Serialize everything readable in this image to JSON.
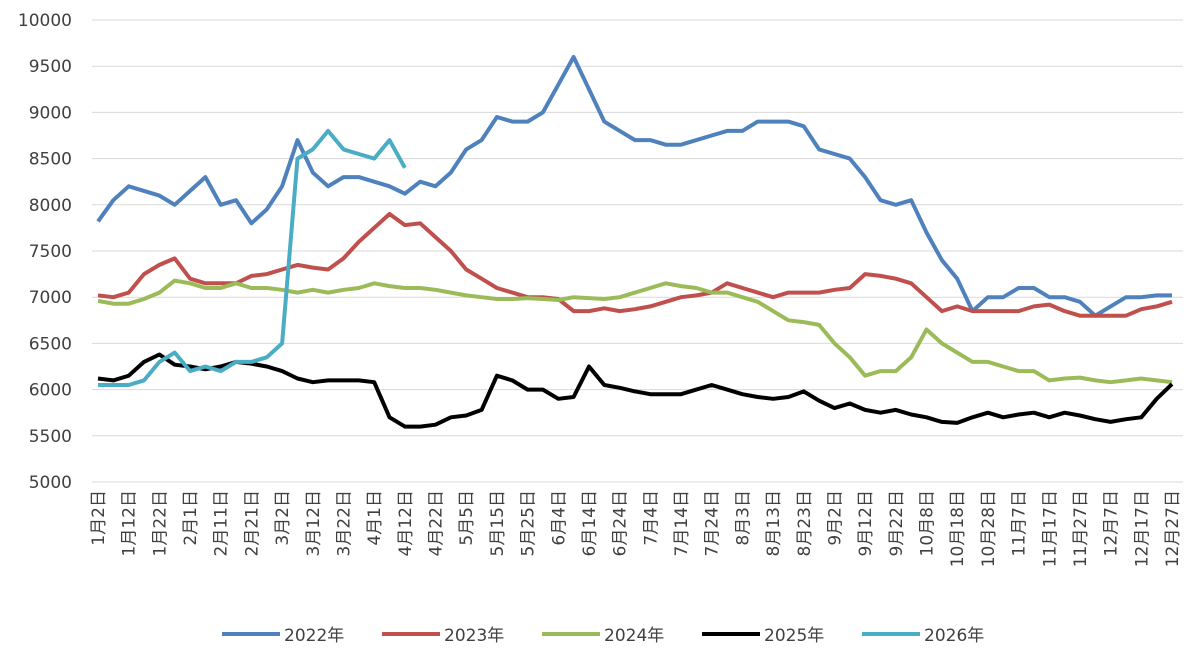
{
  "chart_data": {
    "type": "line",
    "categories": [
      "1月2日",
      null,
      "1月12日",
      null,
      "1月22日",
      null,
      "2月1日",
      null,
      "2月11日",
      null,
      "2月21日",
      null,
      "3月2日",
      null,
      "3月12日",
      null,
      "3月22日",
      null,
      "4月1日",
      null,
      "4月12日",
      null,
      "4月22日",
      null,
      "5月5日",
      null,
      "5月15日",
      null,
      "5月25日",
      null,
      "6月4日",
      null,
      "6月14日",
      null,
      "6月24日",
      null,
      "7月4日",
      null,
      "7月14日",
      null,
      "7月24日",
      null,
      "8月3日",
      null,
      "8月13日",
      null,
      "8月23日",
      null,
      "9月2日",
      null,
      "9月12日",
      null,
      "9月22日",
      null,
      "10月8日",
      null,
      "10月18日",
      null,
      "10月28日",
      null,
      "11月7日",
      null,
      "11月17日",
      null,
      "11月27日",
      null,
      "12月7日",
      null,
      "12月17日",
      null,
      "12月27日"
    ],
    "series": [
      {
        "name": "2022年",
        "color": "#4f81bd",
        "values": [
          7820,
          8050,
          8200,
          8150,
          8100,
          8000,
          8150,
          8300,
          8000,
          8050,
          7800,
          7950,
          8200,
          8700,
          8350,
          8200,
          8300,
          8300,
          8250,
          8200,
          8120,
          8250,
          8200,
          8350,
          8600,
          8700,
          8950,
          8900,
          8900,
          9000,
          9300,
          9600,
          9250,
          8900,
          8800,
          8700,
          8700,
          8650,
          8650,
          8700,
          8750,
          8800,
          8800,
          8900,
          8900,
          8900,
          8850,
          8600,
          8550,
          8500,
          8300,
          8050,
          8000,
          8050,
          7700,
          7400,
          7200,
          6850,
          7000,
          7000,
          7100,
          7100,
          7000,
          7000,
          6950,
          6800,
          6900,
          7000,
          7000,
          7020,
          7020
        ]
      },
      {
        "name": "2023年",
        "color": "#c0504d",
        "values": [
          7020,
          7000,
          7050,
          7250,
          7350,
          7420,
          7200,
          7150,
          7150,
          7150,
          7230,
          7250,
          7300,
          7350,
          7320,
          7300,
          7420,
          7600,
          7750,
          7900,
          7780,
          7800,
          7650,
          7500,
          7300,
          7200,
          7100,
          7050,
          7000,
          7000,
          6980,
          6850,
          6850,
          6880,
          6850,
          6870,
          6900,
          6950,
          7000,
          7020,
          7050,
          7150,
          7100,
          7050,
          7000,
          7050,
          7050,
          7050,
          7080,
          7100,
          7250,
          7230,
          7200,
          7150,
          7000,
          6850,
          6900,
          6850,
          6850,
          6850,
          6850,
          6900,
          6920,
          6850,
          6800,
          6800,
          6800,
          6800,
          6870,
          6900,
          6950
        ]
      },
      {
        "name": "2024年",
        "color": "#9bbb59",
        "values": [
          6960,
          6930,
          6930,
          6980,
          7050,
          7180,
          7150,
          7100,
          7100,
          7150,
          7100,
          7100,
          7080,
          7050,
          7080,
          7050,
          7080,
          7100,
          7150,
          7120,
          7100,
          7100,
          7080,
          7050,
          7020,
          7000,
          6980,
          6980,
          6990,
          6980,
          6970,
          7000,
          6990,
          6980,
          7000,
          7050,
          7100,
          7150,
          7120,
          7100,
          7050,
          7050,
          7000,
          6950,
          6850,
          6750,
          6730,
          6700,
          6500,
          6350,
          6150,
          6200,
          6200,
          6350,
          6650,
          6500,
          6400,
          6300,
          6300,
          6250,
          6200,
          6200,
          6100,
          6120,
          6130,
          6100,
          6080,
          6100,
          6120,
          6100,
          6080
        ]
      },
      {
        "name": "2025年",
        "color": "#000000",
        "values": [
          6120,
          6100,
          6150,
          6300,
          6380,
          6270,
          6250,
          6220,
          6250,
          6300,
          6280,
          6250,
          6200,
          6120,
          6080,
          6100,
          6100,
          6100,
          6080,
          5700,
          5600,
          5600,
          5620,
          5700,
          5720,
          5780,
          6150,
          6100,
          6000,
          6000,
          5900,
          5920,
          6250,
          6050,
          6020,
          5980,
          5950,
          5950,
          5950,
          6000,
          6050,
          6000,
          5950,
          5920,
          5900,
          5920,
          5980,
          5880,
          5800,
          5850,
          5780,
          5750,
          5780,
          5730,
          5700,
          5650,
          5640,
          5700,
          5750,
          5700,
          5730,
          5750,
          5700,
          5750,
          5720,
          5680,
          5650,
          5680,
          5700,
          5900,
          6060
        ]
      },
      {
        "name": "2026年",
        "color": "#4bacc6",
        "values": [
          6050,
          6050,
          6050,
          6100,
          6300,
          6400,
          6200,
          6250,
          6200,
          6300,
          6300,
          6350,
          6500,
          8500,
          8600,
          8800,
          8600,
          8550,
          8500,
          8700,
          8400,
          null,
          null,
          null,
          null,
          null,
          null,
          null,
          null,
          null,
          null,
          null,
          null,
          null,
          null,
          null,
          null,
          null,
          null,
          null,
          null,
          null,
          null,
          null,
          null,
          null,
          null,
          null,
          null,
          null,
          null,
          null,
          null,
          null,
          null,
          null,
          null,
          null,
          null,
          null,
          null,
          null,
          null,
          null,
          null,
          null,
          null,
          null,
          null,
          null,
          null
        ]
      }
    ],
    "ylim": [
      5000,
      10000
    ],
    "yticks": [
      5000,
      5500,
      6000,
      6500,
      7000,
      7500,
      8000,
      8500,
      9000,
      9500,
      10000
    ],
    "grid": true,
    "legend": "bottom"
  }
}
